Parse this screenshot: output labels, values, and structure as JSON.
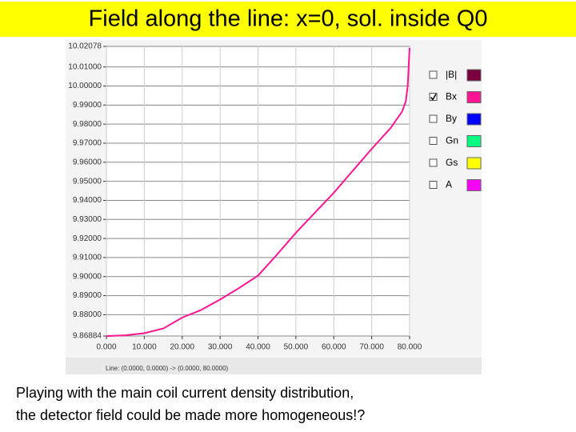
{
  "chart_data": {
    "type": "line",
    "title": "Field along the line:  x=0, sol. inside Q0",
    "x_label": "Line: (0.0000, 0.0000) -> (0.0000, 80.0000)",
    "caption": [
      "Playing with the main coil current  density distribution,",
      "the  detector field could be made more homogeneous!?"
    ],
    "xlim": [
      0,
      80
    ],
    "ylim": [
      9.86884,
      10.02078
    ],
    "xticks": [
      {
        "value": 0,
        "label": "0.000"
      },
      {
        "value": 10,
        "label": "10.000"
      },
      {
        "value": 20,
        "label": "20.000"
      },
      {
        "value": 30,
        "label": "30.000"
      },
      {
        "value": 40,
        "label": "40.000"
      },
      {
        "value": 50,
        "label": "50.000"
      },
      {
        "value": 60,
        "label": "60.000"
      },
      {
        "value": 70,
        "label": "70.000"
      },
      {
        "value": 80,
        "label": "80.000"
      }
    ],
    "yticks": [
      {
        "value": 10.02078,
        "label": "10.02078"
      },
      {
        "value": 10.01,
        "label": "10.01000"
      },
      {
        "value": 10.0,
        "label": "10.00000"
      },
      {
        "value": 9.99,
        "label": "9.99000"
      },
      {
        "value": 9.98,
        "label": "9.98000"
      },
      {
        "value": 9.97,
        "label": "9.97000"
      },
      {
        "value": 9.96,
        "label": "9.96000"
      },
      {
        "value": 9.95,
        "label": "9.95000"
      },
      {
        "value": 9.94,
        "label": "9.94000"
      },
      {
        "value": 9.93,
        "label": "9.93000"
      },
      {
        "value": 9.92,
        "label": "9.92000"
      },
      {
        "value": 9.91,
        "label": "9.91000"
      },
      {
        "value": 9.9,
        "label": "9.90000"
      },
      {
        "value": 9.89,
        "label": "9.89000"
      },
      {
        "value": 9.88,
        "label": "9.88000"
      },
      {
        "value": 9.86884,
        "label": "9.86884"
      }
    ],
    "grid": true,
    "series": [
      {
        "name": "|B|",
        "color": "#7a0040",
        "checked": false
      },
      {
        "name": "Bx",
        "color": "#ff1493",
        "checked": true,
        "x": [
          0,
          5,
          10,
          15,
          20,
          25,
          30,
          35,
          40,
          45,
          50,
          55,
          60,
          65,
          70,
          75,
          78,
          79,
          79.5,
          79.8,
          80
        ],
        "values": [
          9.8688,
          9.8692,
          9.8703,
          9.8728,
          9.8785,
          9.8825,
          9.888,
          9.894,
          9.9005,
          9.9115,
          9.923,
          9.9335,
          9.944,
          9.9555,
          9.967,
          9.978,
          9.9865,
          9.992,
          10.0,
          10.012,
          10.02
        ]
      },
      {
        "name": "By",
        "color": "#0000ff",
        "checked": false
      },
      {
        "name": "Gn",
        "color": "#00ff80",
        "checked": false
      },
      {
        "name": "Gs",
        "color": "#ffff00",
        "checked": false
      },
      {
        "name": "A",
        "color": "#ff00ff",
        "checked": false
      }
    ]
  }
}
